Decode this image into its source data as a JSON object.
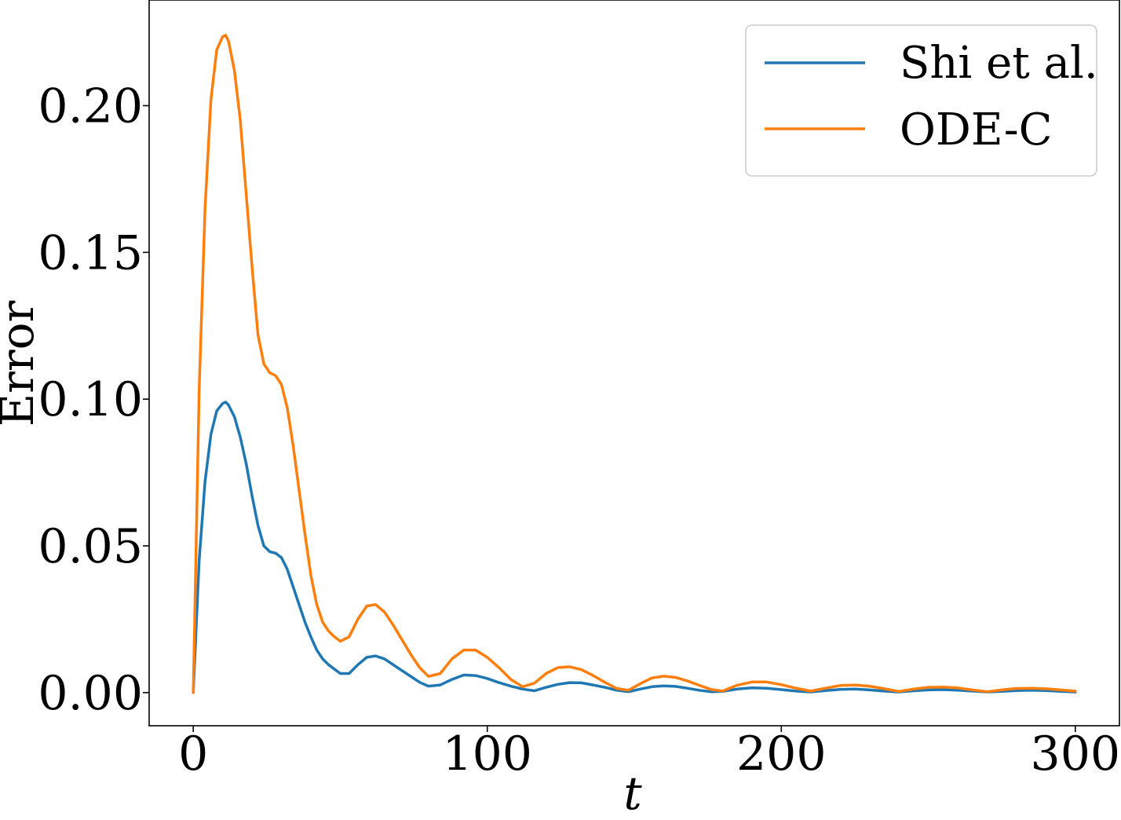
{
  "chart_data": {
    "type": "line",
    "xlabel": "t",
    "ylabel": "Error",
    "xlim": [
      -15,
      315
    ],
    "ylim": [
      -0.0113,
      0.236
    ],
    "xticks": [
      0,
      100,
      200,
      300
    ],
    "xtick_labels": [
      "0",
      "100",
      "200",
      "300"
    ],
    "yticks": [
      0.0,
      0.05,
      0.1,
      0.15,
      0.2
    ],
    "ytick_labels": [
      "0.00",
      "0.05",
      "0.10",
      "0.15",
      "0.20"
    ],
    "grid": false,
    "legend_position": "top-right",
    "series": [
      {
        "name": "Shi et al.",
        "color": "#1f77b4",
        "x": [
          0,
          2,
          4,
          6,
          8,
          10,
          11,
          12,
          14,
          16,
          18,
          20,
          22,
          24,
          26,
          28,
          30,
          32,
          34,
          36,
          38,
          40,
          42,
          44,
          46,
          48,
          50,
          53,
          56,
          59,
          62,
          65,
          68,
          71,
          74,
          77,
          80,
          84,
          88,
          92,
          96,
          100,
          104,
          108,
          112,
          116,
          120,
          124,
          128,
          132,
          136,
          140,
          144,
          148,
          152,
          156,
          160,
          164,
          168,
          172,
          176,
          180,
          185,
          190,
          195,
          200,
          205,
          210,
          215,
          220,
          225,
          230,
          235,
          240,
          245,
          250,
          255,
          260,
          265,
          270,
          275,
          280,
          285,
          290,
          295,
          300
        ],
        "y": [
          0.0,
          0.045,
          0.072,
          0.088,
          0.096,
          0.0985,
          0.099,
          0.098,
          0.094,
          0.087,
          0.078,
          0.067,
          0.057,
          0.05,
          0.048,
          0.0475,
          0.046,
          0.042,
          0.036,
          0.03,
          0.024,
          0.019,
          0.0145,
          0.0115,
          0.0095,
          0.008,
          0.0065,
          0.0065,
          0.0095,
          0.012,
          0.0125,
          0.0115,
          0.0095,
          0.0075,
          0.0055,
          0.0035,
          0.0022,
          0.0026,
          0.0045,
          0.006,
          0.0058,
          0.0048,
          0.0034,
          0.0022,
          0.0012,
          0.0006,
          0.0018,
          0.0028,
          0.0034,
          0.0033,
          0.0026,
          0.0018,
          0.0008,
          0.0003,
          0.0012,
          0.002,
          0.0023,
          0.0021,
          0.0015,
          0.0008,
          0.0003,
          0.0004,
          0.0012,
          0.0016,
          0.0015,
          0.001,
          0.0005,
          0.0002,
          0.0007,
          0.0011,
          0.0012,
          0.0009,
          0.0005,
          0.0002,
          0.0006,
          0.0009,
          0.001,
          0.0008,
          0.0005,
          0.0002,
          0.0004,
          0.0007,
          0.0008,
          0.0007,
          0.0004,
          0.0002
        ]
      },
      {
        "name": "ODE-C",
        "color": "#ff7f0e",
        "x": [
          0,
          2,
          4,
          6,
          8,
          10,
          11,
          12,
          14,
          16,
          18,
          20,
          22,
          24,
          26,
          28,
          30,
          32,
          34,
          36,
          38,
          40,
          42,
          44,
          46,
          48,
          50,
          53,
          56,
          59,
          62,
          65,
          68,
          71,
          74,
          77,
          80,
          84,
          88,
          92,
          96,
          100,
          104,
          108,
          112,
          116,
          120,
          124,
          128,
          132,
          136,
          140,
          144,
          148,
          152,
          156,
          160,
          164,
          168,
          172,
          176,
          180,
          185,
          190,
          195,
          200,
          205,
          210,
          215,
          220,
          225,
          230,
          235,
          240,
          245,
          250,
          255,
          260,
          265,
          270,
          275,
          280,
          285,
          290,
          295,
          300
        ],
        "y": [
          0.0,
          0.103,
          0.165,
          0.202,
          0.219,
          0.2235,
          0.224,
          0.222,
          0.212,
          0.195,
          0.17,
          0.145,
          0.122,
          0.112,
          0.109,
          0.108,
          0.105,
          0.097,
          0.084,
          0.069,
          0.054,
          0.04,
          0.03,
          0.024,
          0.021,
          0.019,
          0.0175,
          0.019,
          0.025,
          0.0295,
          0.03,
          0.0275,
          0.023,
          0.018,
          0.013,
          0.0085,
          0.0055,
          0.0065,
          0.0115,
          0.0145,
          0.0145,
          0.012,
          0.0085,
          0.0045,
          0.002,
          0.0032,
          0.0065,
          0.0085,
          0.0088,
          0.0078,
          0.0058,
          0.0035,
          0.0014,
          0.0008,
          0.003,
          0.005,
          0.0056,
          0.0052,
          0.004,
          0.0025,
          0.0011,
          0.0005,
          0.0025,
          0.0036,
          0.0036,
          0.0027,
          0.0015,
          0.0005,
          0.0015,
          0.0024,
          0.0026,
          0.0022,
          0.0013,
          0.0004,
          0.0012,
          0.0018,
          0.0019,
          0.0016,
          0.0009,
          0.0003,
          0.0009,
          0.0014,
          0.0015,
          0.0013,
          0.0009,
          0.0005
        ]
      }
    ]
  }
}
